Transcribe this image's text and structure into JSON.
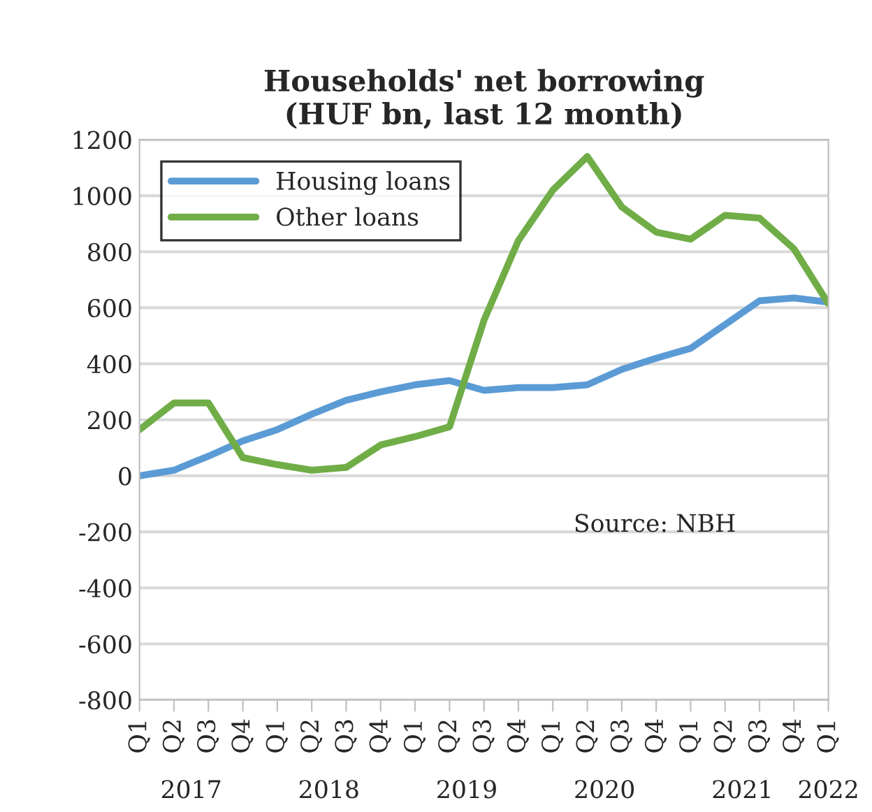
{
  "chart_data": {
    "type": "line",
    "title": "Households' net borrowing\n(HUF bn, last 12 month)",
    "categories": [
      "Q1",
      "Q2",
      "Q3",
      "Q4",
      "Q1",
      "Q2",
      "Q3",
      "Q4",
      "Q1",
      "Q2",
      "Q3",
      "Q4",
      "Q1",
      "Q2",
      "Q3",
      "Q4",
      "Q1",
      "Q2",
      "Q3",
      "Q4",
      "Q1"
    ],
    "series": [
      {
        "name": "Housing loans",
        "color": "#5b9bd5",
        "values": [
          0,
          20,
          70,
          125,
          165,
          220,
          270,
          300,
          325,
          340,
          305,
          315,
          315,
          325,
          380,
          420,
          455,
          540,
          625,
          635,
          620
        ]
      },
      {
        "name": "Other loans",
        "color": "#70ad47",
        "values": [
          165,
          260,
          260,
          65,
          40,
          20,
          30,
          110,
          140,
          175,
          555,
          840,
          1020,
          1140,
          960,
          870,
          845,
          930,
          920,
          810,
          615
        ]
      }
    ],
    "ylim": [
      -800,
      1200
    ],
    "yticks": [
      -800,
      -600,
      -400,
      -200,
      0,
      200,
      400,
      600,
      800,
      1000,
      1200
    ],
    "grid": "y",
    "legend": "top left",
    "line_style": "solid",
    "marker": "none",
    "annotations": [
      "Source: NBH",
      "2017",
      "2018",
      "2019",
      "2020",
      "2021",
      "2022"
    ]
  }
}
